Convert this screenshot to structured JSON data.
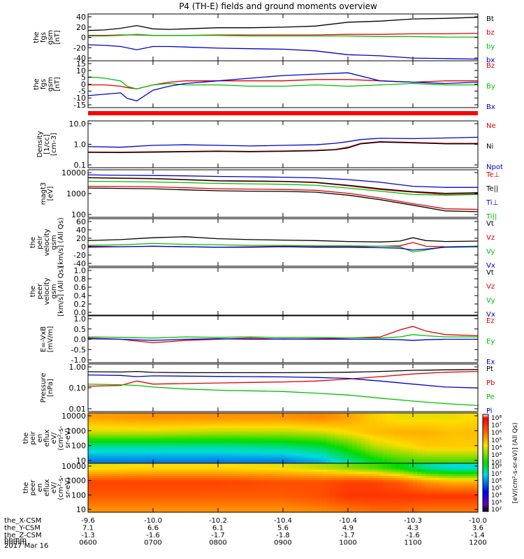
{
  "title": "P4 (TH-E) fields and ground moments overview",
  "date_label": "2017 Mar 16",
  "ephemeris": {
    "row_labels": [
      "the_X-CSM",
      "the_Y-CSM",
      "the_Z-CSM",
      "hhmm"
    ],
    "x_gsm": [
      "-9.6",
      "-10.0",
      "-10.2",
      "-10.4",
      "-10.4",
      "-10.3",
      "-10.0"
    ],
    "y_gsm": [
      "7.1",
      "6.6",
      "6.1",
      "5.6",
      "4.9",
      "4.3",
      "3.6"
    ],
    "z_gsm": [
      "-1.3",
      "-1.6",
      "-1.7",
      "-1.8",
      "-1.7",
      "-1.6",
      "-1.4"
    ],
    "hhmm": [
      "0600",
      "0700",
      "0800",
      "0900",
      "1000",
      "1100",
      "1200"
    ]
  },
  "colorbar": {
    "tick_labels": [
      "10^8",
      "10^7",
      "10^6",
      "10^5",
      "10^4",
      "10^3",
      "10^2"
    ],
    "label": "[eV/(cm^2-s-sr-eV)] (All Qs)"
  },
  "chart_data": [
    {
      "id": "fgs_gsm",
      "type": "line",
      "ylabel": [
        "the",
        "fgs",
        "gsm",
        "[nT]"
      ],
      "ylim": [
        -40,
        45
      ],
      "ytick_labels": [
        "40",
        "20",
        "0",
        "-20",
        "-40"
      ],
      "x": [
        6.0,
        6.25,
        6.5,
        6.75,
        7.0,
        7.25,
        7.5,
        8.0,
        8.5,
        9.0,
        9.5,
        10.0,
        10.5,
        11.0,
        11.5,
        12.0
      ],
      "series": [
        {
          "name": "Bt",
          "color": "#000000",
          "values": [
            15,
            16,
            19,
            24,
            18,
            17,
            18,
            20,
            20,
            21,
            23,
            30,
            32,
            36,
            37,
            39
          ]
        },
        {
          "name": "bz",
          "color": "#e00000",
          "values": [
            6,
            6,
            7,
            7,
            6,
            6,
            6,
            7,
            7,
            7,
            7,
            8,
            8,
            9,
            9,
            10
          ]
        },
        {
          "name": "by",
          "color": "#00c000",
          "values": [
            5,
            5,
            6,
            8,
            6,
            6,
            6,
            6,
            5,
            5,
            5,
            5,
            4,
            4,
            3,
            3
          ]
        },
        {
          "name": "bx",
          "color": "#0000d0",
          "values": [
            -11,
            -12,
            -14,
            -20,
            -14,
            -14,
            -15,
            -17,
            -18,
            -19,
            -22,
            -29,
            -31,
            -35,
            -36,
            -37
          ]
        }
      ]
    },
    {
      "id": "fgs_gsm_zoom",
      "type": "line",
      "ylabel": [
        "the",
        "fgs",
        "gsm",
        "[nT]"
      ],
      "ylim": [
        -19,
        16
      ],
      "ytick_labels": [
        "15",
        "10",
        "5",
        "0",
        "-5",
        "-10",
        "-15"
      ],
      "x": [
        6.0,
        6.25,
        6.5,
        6.6,
        6.75,
        7.0,
        7.25,
        7.5,
        8.0,
        8.5,
        9.0,
        9.5,
        10.0,
        10.5,
        11.0,
        11.5,
        12.0
      ],
      "series": [
        {
          "name": "Bz",
          "color": "#e00000",
          "values": [
            -2,
            -2,
            -3,
            -4,
            -5,
            -2,
            0,
            1,
            1,
            1,
            1,
            2,
            2,
            1,
            0,
            1,
            1
          ]
        },
        {
          "name": "By",
          "color": "#00c000",
          "values": [
            4,
            3,
            1,
            -3,
            -5,
            -2,
            -1,
            -2,
            -2,
            -3,
            -3,
            -2,
            -3,
            -2,
            -1,
            -2,
            -2
          ]
        },
        {
          "name": "Bx",
          "color": "#0000d0",
          "values": [
            -10,
            -9,
            -8,
            -12,
            -14,
            -6,
            -3,
            -1,
            1,
            3,
            5,
            6,
            7,
            1,
            0,
            -1,
            0
          ]
        }
      ]
    },
    {
      "id": "density",
      "type": "line",
      "ylabel": [
        "Density",
        "[1/cc]",
        "[cm-3]"
      ],
      "scale": "log",
      "ylim": [
        0.1,
        10.0
      ],
      "ytick_labels": [
        "10.0",
        "1.0",
        "0.1"
      ],
      "x": [
        6.0,
        6.5,
        7.0,
        7.5,
        8.0,
        8.5,
        9.0,
        9.5,
        9.8,
        10.0,
        10.2,
        10.5,
        11.0,
        11.5,
        12.0
      ],
      "series": [
        {
          "name": "Ne",
          "color": "#e00000",
          "values": [
            0.47,
            0.46,
            0.48,
            0.5,
            0.52,
            0.5,
            0.52,
            0.55,
            0.6,
            0.75,
            1.1,
            1.3,
            1.2,
            1.1,
            1.1
          ]
        },
        {
          "name": "Ni",
          "color": "#000000",
          "values": [
            0.45,
            0.44,
            0.46,
            0.48,
            0.5,
            0.48,
            0.5,
            0.53,
            0.58,
            0.7,
            1.05,
            1.25,
            1.15,
            1.05,
            1.05
          ]
        },
        {
          "name": "Npot",
          "color": "#0000d0",
          "values": [
            0.8,
            0.75,
            0.9,
            0.95,
            0.9,
            0.85,
            0.9,
            0.95,
            1.1,
            1.3,
            1.6,
            1.8,
            1.75,
            1.85,
            2.0
          ]
        }
      ]
    },
    {
      "id": "temperature",
      "type": "line",
      "ylabel": [
        "magt3",
        "[eV]"
      ],
      "scale": "log",
      "ylim": [
        60,
        10000
      ],
      "ytick_labels": [
        "10000",
        "1000",
        "100"
      ],
      "x": [
        6.0,
        6.5,
        7.0,
        7.5,
        8.0,
        8.5,
        9.0,
        9.5,
        10.0,
        10.5,
        11.0,
        11.5,
        12.0
      ],
      "series": [
        {
          "name": "Te⊥",
          "color": "#e00000",
          "values": [
            4200,
            4000,
            3800,
            3400,
            3000,
            2900,
            2800,
            2500,
            1800,
            1200,
            900,
            700,
            750
          ]
        },
        {
          "name": "Te||",
          "color": "#000000",
          "values": [
            4300,
            4100,
            3900,
            3500,
            3100,
            3000,
            2900,
            2600,
            1900,
            1300,
            950,
            800,
            850
          ]
        },
        {
          "name": "Ti⊥",
          "color": "#0000d0",
          "values": [
            5800,
            5500,
            5400,
            5200,
            4900,
            4700,
            4500,
            4200,
            3500,
            2600,
            1700,
            1500,
            1500
          ]
        },
        {
          "name": "Ti||",
          "color": "#00c000",
          "values": [
            2900,
            2800,
            2700,
            2500,
            2300,
            2200,
            2100,
            1900,
            1400,
            1000,
            700,
            650,
            700
          ]
        },
        {
          "name": "",
          "color": "#000000",
          "values": [
            1400,
            1350,
            1300,
            1150,
            1050,
            1000,
            980,
            900,
            650,
            400,
            220,
            120,
            110
          ]
        },
        {
          "name": "",
          "color": "#e00000",
          "values": [
            1700,
            1650,
            1600,
            1450,
            1300,
            1250,
            1200,
            1100,
            800,
            480,
            260,
            150,
            140
          ]
        }
      ]
    },
    {
      "id": "peir_velocity",
      "type": "line",
      "ylabel": [
        "the",
        "peir",
        "velocity",
        "gsm",
        "[km/s] (All Qs)"
      ],
      "ylim": [
        -40,
        60
      ],
      "ytick_labels": [
        "60",
        "40",
        "20",
        "0",
        "-20",
        "-40"
      ],
      "x": [
        6.0,
        6.5,
        7.0,
        7.5,
        8.0,
        8.5,
        9.0,
        9.5,
        10.0,
        10.5,
        10.8,
        11.0,
        11.2,
        11.5,
        12.0
      ],
      "series": [
        {
          "name": "Vt",
          "color": "#000000",
          "values": [
            14,
            16,
            20,
            22,
            18,
            16,
            15,
            14,
            12,
            11,
            13,
            20,
            14,
            12,
            13
          ]
        },
        {
          "name": "Vz",
          "color": "#e00000",
          "values": [
            2,
            1,
            2,
            1,
            0,
            1,
            2,
            1,
            1,
            2,
            3,
            10,
            2,
            1,
            2
          ]
        },
        {
          "name": "Vy",
          "color": "#00c000",
          "values": [
            4,
            5,
            8,
            6,
            5,
            4,
            4,
            3,
            3,
            2,
            1,
            -10,
            -6,
            1,
            2
          ]
        },
        {
          "name": "Vx",
          "color": "#0000d0",
          "values": [
            0,
            1,
            2,
            1,
            0,
            0,
            1,
            0,
            0,
            -1,
            -2,
            -6,
            -4,
            0,
            1
          ]
        }
      ]
    },
    {
      "id": "peer_velocity",
      "type": "line",
      "ylabel": [
        "the",
        "peer",
        "velocity",
        "gsm",
        "[km/s] (All Qs)"
      ],
      "ylim": [
        0.0,
        1.0
      ],
      "ytick_labels": [
        "1.0",
        "0.8",
        "0.6",
        "0.4",
        "0.2",
        "0.0"
      ],
      "x": [],
      "series": [
        {
          "name": "Vt",
          "color": "#000000",
          "values": []
        },
        {
          "name": "Vz",
          "color": "#e00000",
          "values": []
        },
        {
          "name": "Vy",
          "color": "#00c000",
          "values": []
        },
        {
          "name": "Vx",
          "color": "#0000d0",
          "values": []
        }
      ]
    },
    {
      "id": "efield",
      "type": "line",
      "ylabel": [
        "E=-VxB",
        "[mV/m]"
      ],
      "ylim": [
        -1.0,
        1.0
      ],
      "ytick_labels": [
        "1.0",
        "0.5",
        "0.0",
        "-0.5",
        "-1.0"
      ],
      "x": [
        6.0,
        6.5,
        7.0,
        7.5,
        8.0,
        8.5,
        9.0,
        9.5,
        10.0,
        10.5,
        10.8,
        11.0,
        11.2,
        11.5,
        12.0
      ],
      "series": [
        {
          "name": "Ez",
          "color": "#e00000",
          "values": [
            0.05,
            0.0,
            -0.15,
            -0.05,
            0.0,
            0.05,
            0.0,
            0.02,
            0.05,
            0.1,
            0.4,
            0.55,
            0.35,
            0.2,
            0.15
          ]
        },
        {
          "name": "Ey",
          "color": "#00c000",
          "values": [
            0.1,
            0.08,
            0.05,
            0.1,
            0.08,
            0.1,
            0.07,
            0.08,
            0.06,
            0.05,
            0.1,
            0.2,
            0.15,
            0.1,
            0.1
          ]
        },
        {
          "name": "Ex",
          "color": "#0000d0",
          "values": [
            0.02,
            0.0,
            -0.05,
            0.0,
            0.02,
            0.0,
            0.01,
            0.0,
            0.0,
            0.0,
            -0.02,
            -0.05,
            -0.02,
            0.0,
            0.0
          ]
        }
      ]
    },
    {
      "id": "pressure",
      "type": "line",
      "ylabel": [
        "Pressure",
        "[nPa]"
      ],
      "scale": "log",
      "ylim": [
        0.006,
        1.4
      ],
      "ytick_labels": [
        "1.00",
        "0.10",
        "0.01"
      ],
      "x": [
        6.0,
        6.5,
        6.75,
        7.0,
        7.5,
        8.0,
        8.5,
        9.0,
        9.5,
        10.0,
        10.5,
        11.0,
        11.5,
        12.0
      ],
      "series": [
        {
          "name": "Pt",
          "color": "#000000",
          "values": [
            0.58,
            0.56,
            0.6,
            0.54,
            0.52,
            0.52,
            0.52,
            0.52,
            0.53,
            0.55,
            0.6,
            0.68,
            0.72,
            0.75
          ]
        },
        {
          "name": "Pb",
          "color": "#e00000",
          "values": [
            0.11,
            0.12,
            0.2,
            0.14,
            0.15,
            0.16,
            0.17,
            0.18,
            0.2,
            0.25,
            0.33,
            0.45,
            0.55,
            0.6
          ]
        },
        {
          "name": "Pe",
          "color": "#00c000",
          "values": [
            0.14,
            0.13,
            0.12,
            0.1,
            0.08,
            0.07,
            0.065,
            0.06,
            0.05,
            0.04,
            0.028,
            0.02,
            0.015,
            0.012
          ]
        },
        {
          "name": "Pi",
          "color": "#0000d0",
          "values": [
            0.4,
            0.38,
            0.33,
            0.36,
            0.35,
            0.34,
            0.33,
            0.32,
            0.3,
            0.27,
            0.2,
            0.14,
            0.1,
            0.09
          ]
        }
      ]
    },
    {
      "id": "peir_en_eflux",
      "type": "heatmap",
      "ylabel": [
        "the",
        "peir",
        "en",
        "eflux",
        "eV/",
        "(cm^2-s-",
        "sr-eV)"
      ],
      "scale": "log",
      "ylim": [
        7,
        20000
      ],
      "ytick_labels": [
        "10000",
        "1000",
        "100",
        "10"
      ],
      "zlim": [
        100,
        100000000
      ],
      "x": [
        6.0,
        7.0,
        8.0,
        9.0,
        9.6,
        10.0,
        10.4,
        10.8,
        11.2,
        11.6,
        12.0
      ],
      "y": [
        10,
        100,
        1000,
        10000
      ],
      "z_log10": [
        [
          4.0,
          4.0,
          4.0,
          4.0,
          4.2,
          4.6,
          5.0,
          5.3,
          5.4,
          5.4,
          5.4
        ],
        [
          4.6,
          4.6,
          4.6,
          4.7,
          4.9,
          5.3,
          5.8,
          6.0,
          6.2,
          6.2,
          6.2
        ],
        [
          5.9,
          5.9,
          5.8,
          5.8,
          5.9,
          6.1,
          6.3,
          6.4,
          6.4,
          6.3,
          6.3
        ],
        [
          6.5,
          6.6,
          6.6,
          6.6,
          6.7,
          6.5,
          6.2,
          6.0,
          6.0,
          6.0,
          6.1
        ]
      ]
    },
    {
      "id": "peer_en_eflux",
      "type": "heatmap",
      "ylabel": [
        "the",
        "peer",
        "en",
        "eflux",
        "eV/",
        "(cm^2-s-",
        "sr-eV)"
      ],
      "scale": "log",
      "ylim": [
        7,
        20000
      ],
      "ytick_labels": [
        "10000",
        "1000",
        "100",
        "10"
      ],
      "zlim": [
        100,
        100000000
      ],
      "x": [
        6.0,
        7.0,
        8.0,
        9.0,
        9.6,
        10.0,
        10.4,
        10.8,
        11.2,
        11.6,
        12.0
      ],
      "y": [
        10,
        100,
        1000,
        10000
      ],
      "z_log10": [
        [
          6.6,
          6.6,
          6.6,
          6.6,
          6.7,
          6.8,
          6.9,
          6.9,
          6.8,
          6.8,
          6.8
        ],
        [
          7.0,
          7.0,
          7.0,
          7.0,
          7.1,
          7.3,
          7.3,
          7.3,
          7.3,
          7.3,
          7.3
        ],
        [
          7.2,
          7.2,
          7.2,
          7.1,
          7.1,
          7.2,
          7.2,
          7.0,
          6.6,
          6.4,
          6.4
        ],
        [
          6.0,
          6.1,
          6.1,
          6.0,
          5.8,
          5.6,
          5.4,
          5.1,
          4.6,
          4.4,
          4.4
        ]
      ]
    }
  ]
}
